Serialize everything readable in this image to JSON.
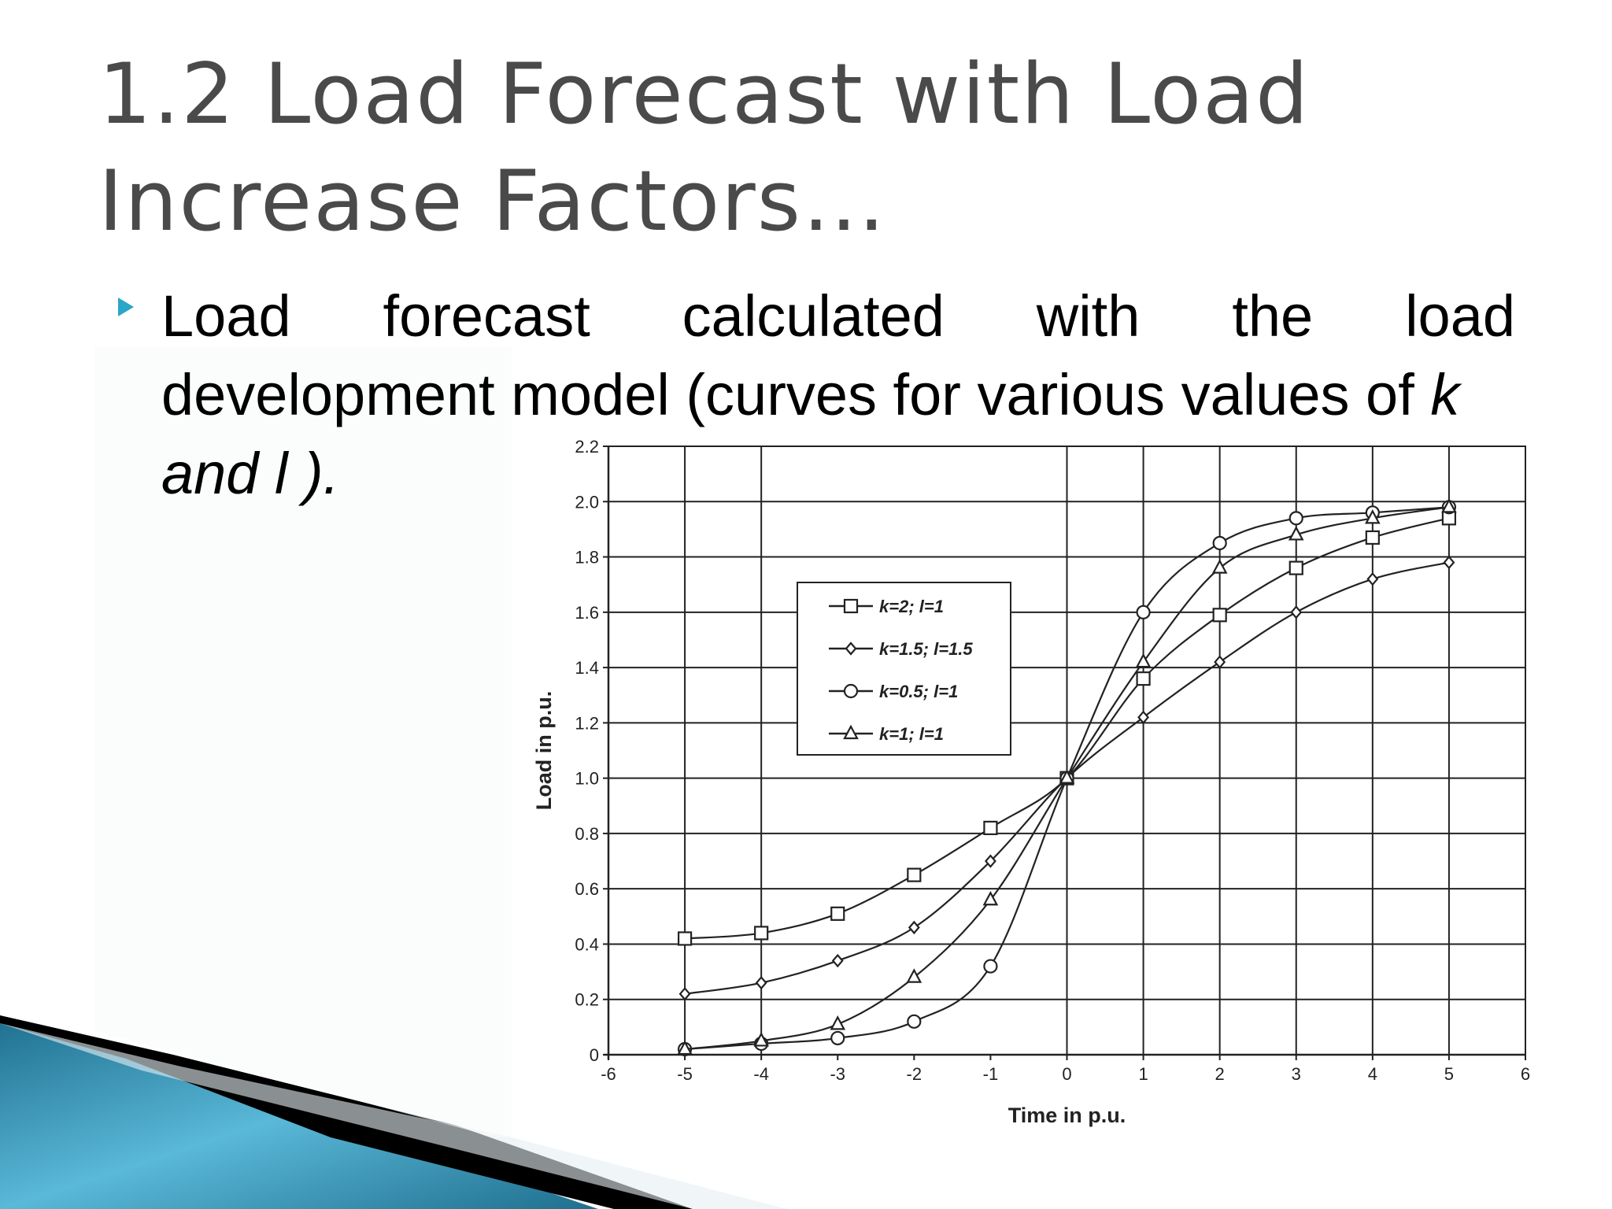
{
  "slide": {
    "title_line1": "1.2 Load Forecast with Load",
    "title_line2": "Increase Factors…",
    "bullet": {
      "words_line1": [
        "Load",
        "forecast",
        "calculated",
        "with",
        "the",
        "load"
      ],
      "line2": "development model (curves for various values of ",
      "line2_var": "k",
      "line3": "and l )."
    },
    "colors": {
      "bullet_arrow": "#2aa6c8",
      "title": "#4a4a4a",
      "decor_blue": "#2a86a6"
    }
  },
  "chart_data": {
    "type": "line",
    "xlabel": "Time in p.u.",
    "ylabel": "Load in p.u.",
    "xlim": [
      -6,
      6
    ],
    "ylim": [
      0,
      2.2
    ],
    "x_ticks": [
      -6,
      -5,
      -4,
      -3,
      -2,
      -1,
      0,
      1,
      2,
      3,
      4,
      5,
      6
    ],
    "x_tick_labels": [
      "-6",
      "-5",
      "-4",
      "-3",
      "-2",
      "-1",
      "0",
      "1",
      "2",
      "3",
      "4",
      "5",
      "6"
    ],
    "y_ticks": [
      0,
      0.2,
      0.4,
      0.6,
      0.8,
      1.0,
      1.2,
      1.4,
      1.6,
      1.8,
      2.0,
      2.2
    ],
    "y_tick_labels": [
      "0",
      "0.2",
      "0.4",
      "0.6",
      "0.8",
      "1.0",
      "1.2",
      "1.4",
      "1.6",
      "1.8",
      "2.0",
      "2.2"
    ],
    "x_grid": [
      -5,
      -4,
      0,
      1,
      2,
      3,
      4,
      5
    ],
    "grid": true,
    "legend_position": "upper-left inside plot",
    "x": [
      -5,
      -4,
      -3,
      -2,
      -1,
      0,
      1,
      2,
      3,
      4,
      5
    ],
    "series": [
      {
        "name": "k=2;  l=1",
        "marker": "square",
        "values": [
          0.42,
          0.44,
          0.51,
          0.65,
          0.82,
          1.0,
          1.36,
          1.59,
          1.76,
          1.87,
          1.94
        ]
      },
      {
        "name": "k=1.5; l=1.5",
        "marker": "diamond",
        "values": [
          0.22,
          0.26,
          0.34,
          0.46,
          0.7,
          1.0,
          1.22,
          1.42,
          1.6,
          1.72,
          1.78
        ]
      },
      {
        "name": "k=0.5; l=1",
        "marker": "circle",
        "values": [
          0.02,
          0.04,
          0.06,
          0.12,
          0.32,
          1.0,
          1.6,
          1.85,
          1.94,
          1.96,
          1.98
        ]
      },
      {
        "name": "k=1;  l=1",
        "marker": "triangle",
        "values": [
          0.02,
          0.05,
          0.11,
          0.28,
          0.56,
          1.0,
          1.42,
          1.76,
          1.88,
          1.94,
          1.98
        ]
      }
    ]
  }
}
